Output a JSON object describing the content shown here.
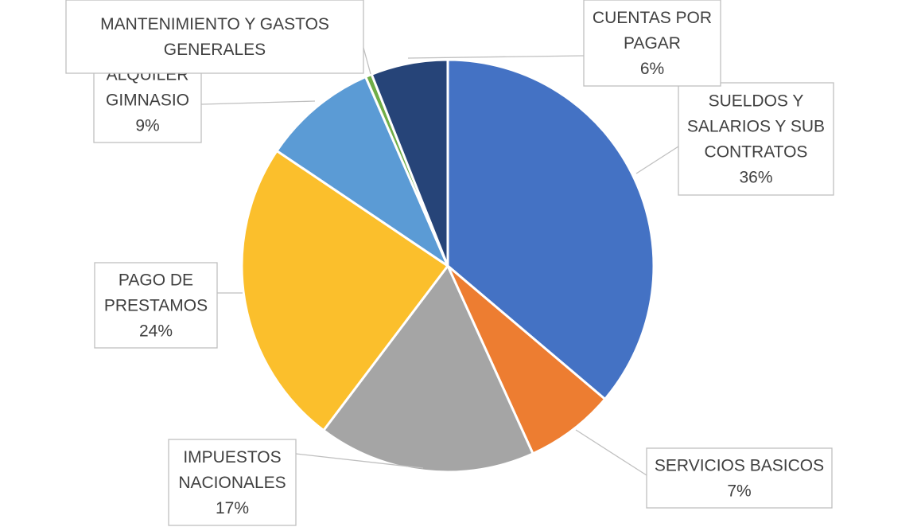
{
  "chart_data": {
    "type": "pie",
    "title": "",
    "slices": [
      {
        "label_lines": [
          "SUELDOS Y",
          "SALARIOS Y SUB",
          "CONTRATOS"
        ],
        "label": "SUELDOS Y SALARIOS Y SUB CONTRATOS",
        "value": 36,
        "percent": "36%",
        "color": "#4472C4"
      },
      {
        "label_lines": [
          "SERVICIOS BASICOS"
        ],
        "label": "SERVICIOS BASICOS",
        "value": 7,
        "percent": "7%",
        "color": "#ED7D31"
      },
      {
        "label_lines": [
          "IMPUESTOS",
          "NACIONALES"
        ],
        "label": "IMPUESTOS NACIONALES",
        "value": 17,
        "percent": "17%",
        "color": "#A5A5A5"
      },
      {
        "label_lines": [
          "PAGO DE",
          "PRESTAMOS"
        ],
        "label": "PAGO DE PRESTAMOS",
        "value": 24,
        "percent": "24%",
        "color": "#FBBF2C"
      },
      {
        "label_lines": [
          "ALQUILER",
          "GIMNASIO"
        ],
        "label": "ALQUILER GIMNASIO",
        "value": 9,
        "percent": "9%",
        "color": "#5B9BD5"
      },
      {
        "label_lines": [
          "MANTENIMIENTO Y GASTOS",
          "GENERALES"
        ],
        "label": "MANTENIMIENTO Y GASTOS GENERALES",
        "value": 0.5,
        "percent": "",
        "color": "#70AD47"
      },
      {
        "label_lines": [
          "CUENTAS POR",
          "PAGAR"
        ],
        "label": "CUENTAS POR PAGAR",
        "value": 6,
        "percent": "6%",
        "color": "#264478"
      }
    ]
  }
}
